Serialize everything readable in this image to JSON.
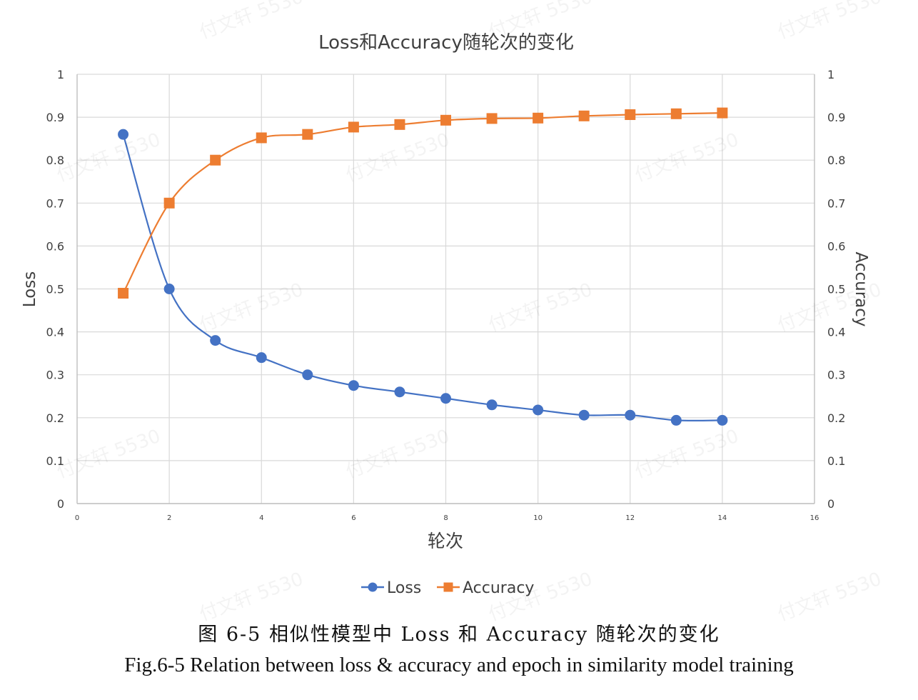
{
  "chart_data": {
    "type": "line",
    "title": "Loss和Accuracy随轮次的变化",
    "xlabel": "轮次",
    "ylabel_left": "Loss",
    "ylabel_right": "Accuracy",
    "xlim": [
      0,
      16
    ],
    "ylim_left": [
      0,
      1
    ],
    "ylim_right": [
      0,
      1
    ],
    "x_ticks": [
      "0",
      "2",
      "4",
      "6",
      "8",
      "10",
      "12",
      "14",
      "16"
    ],
    "y_ticks": [
      "0",
      "0.1",
      "0.2",
      "0.3",
      "0.4",
      "0.5",
      "0.6",
      "0.7",
      "0.8",
      "0.9",
      "1"
    ],
    "grid": true,
    "legend": "bottom-center",
    "smooth": true,
    "x": [
      1,
      2,
      3,
      4,
      5,
      6,
      7,
      8,
      9,
      10,
      11,
      12,
      13,
      14
    ],
    "series": [
      {
        "name": "Loss",
        "axis": "left",
        "marker": "circle",
        "color": "#4472C4",
        "values": [
          0.86,
          0.5,
          0.38,
          0.34,
          0.3,
          0.275,
          0.26,
          0.245,
          0.23,
          0.218,
          0.206,
          0.206,
          0.194,
          0.194
        ]
      },
      {
        "name": "Accuracy",
        "axis": "right",
        "marker": "square",
        "color": "#ED7D31",
        "values": [
          0.49,
          0.7,
          0.8,
          0.852,
          0.86,
          0.877,
          0.883,
          0.893,
          0.897,
          0.898,
          0.903,
          0.906,
          0.908,
          0.91
        ]
      }
    ]
  },
  "captions": {
    "cn": "图 6-5  相似性模型中 Loss 和 Accuracy 随轮次的变化",
    "en": "Fig.6-5 Relation between loss & accuracy and epoch in similarity model training"
  },
  "watermark": "付文轩 5530"
}
